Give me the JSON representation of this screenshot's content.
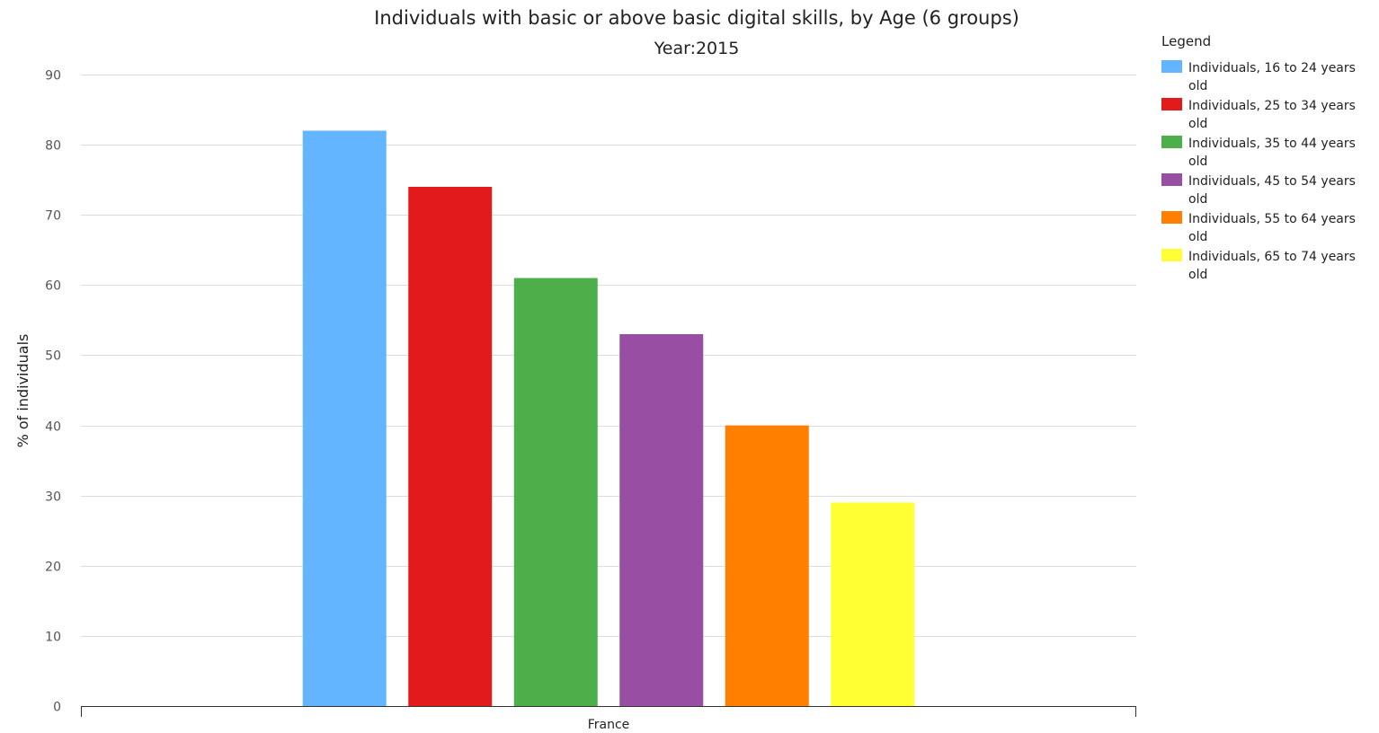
{
  "chart_data": {
    "type": "bar",
    "title": "Individuals with basic or above basic digital skills, by Age (6 groups)",
    "subtitle": "Year:2015",
    "categories": [
      "France"
    ],
    "ylabel": "% of individuals",
    "xlabel": "",
    "ylim": [
      0,
      90
    ],
    "yticks": [
      0,
      10,
      20,
      30,
      40,
      50,
      60,
      70,
      80,
      90
    ],
    "grid": true,
    "legend": {
      "title": "Legend",
      "position": "right"
    },
    "series": [
      {
        "name": "Individuals, 16 to 24 years old",
        "color": "#64b5ff",
        "values": [
          82
        ]
      },
      {
        "name": "Individuals, 25 to 34 years old",
        "color": "#e31a1c",
        "values": [
          74
        ]
      },
      {
        "name": "Individuals, 35 to 44 years old",
        "color": "#4daf4a",
        "values": [
          61
        ]
      },
      {
        "name": "Individuals, 45 to 54 years old",
        "color": "#984ea3",
        "values": [
          53
        ]
      },
      {
        "name": "Individuals, 55 to 64 years old",
        "color": "#ff7f00",
        "values": [
          40
        ]
      },
      {
        "name": "Individuals, 65 to 74 years old",
        "color": "#ffff33",
        "values": [
          29
        ]
      }
    ]
  }
}
